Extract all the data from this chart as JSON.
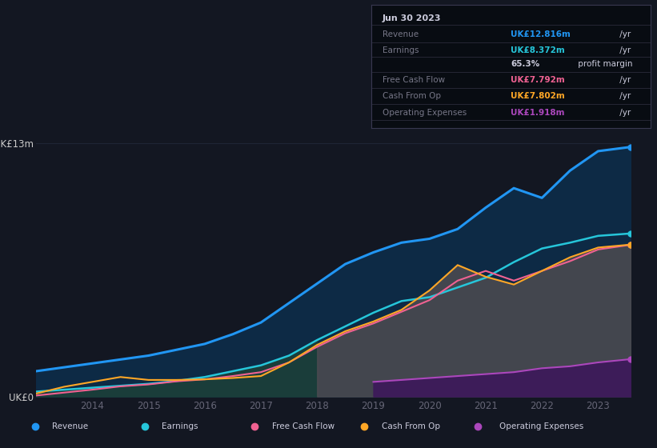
{
  "bg_color": "#131722",
  "plot_bg_color": "#131722",
  "years": [
    2013.0,
    2013.5,
    2014,
    2014.5,
    2015,
    2015.5,
    2016,
    2016.5,
    2017,
    2017.5,
    2018,
    2018.5,
    2019,
    2019.5,
    2020,
    2020.5,
    2021,
    2021.5,
    2022,
    2022.5,
    2023,
    2023.58
  ],
  "revenue": [
    1.3,
    1.5,
    1.7,
    1.9,
    2.1,
    2.4,
    2.7,
    3.2,
    3.8,
    4.8,
    5.8,
    6.8,
    7.4,
    7.9,
    8.1,
    8.6,
    9.7,
    10.7,
    10.2,
    11.6,
    12.6,
    12.816
  ],
  "earnings": [
    0.25,
    0.35,
    0.45,
    0.55,
    0.65,
    0.8,
    1.0,
    1.3,
    1.6,
    2.1,
    2.9,
    3.6,
    4.3,
    4.9,
    5.1,
    5.6,
    6.1,
    6.9,
    7.6,
    7.9,
    8.25,
    8.372
  ],
  "free_cf": [
    0.05,
    0.2,
    0.35,
    0.52,
    0.62,
    0.78,
    0.88,
    1.05,
    1.25,
    1.75,
    2.55,
    3.25,
    3.75,
    4.35,
    4.95,
    5.95,
    6.45,
    5.95,
    6.45,
    6.95,
    7.55,
    7.792
  ],
  "cash_op": [
    0.15,
    0.5,
    0.75,
    1.0,
    0.85,
    0.85,
    0.88,
    0.95,
    1.05,
    1.75,
    2.65,
    3.35,
    3.85,
    4.45,
    5.45,
    6.75,
    6.15,
    5.75,
    6.45,
    7.15,
    7.65,
    7.802
  ],
  "op_exp": [
    null,
    null,
    null,
    null,
    null,
    null,
    null,
    null,
    null,
    null,
    null,
    null,
    0.75,
    0.85,
    0.95,
    1.05,
    1.15,
    1.25,
    1.45,
    1.55,
    1.75,
    1.918
  ],
  "revenue_color": "#2196f3",
  "earnings_color": "#26c6da",
  "free_cf_color": "#f06292",
  "cash_op_color": "#ffa726",
  "op_exp_color": "#ab47bc",
  "revenue_fill_color": "#0d2a45",
  "earnings_fill_early_color": "#1a3d3a",
  "cash_op_fill_color": "#4a4a50",
  "op_exp_fill_color": "#3d1a5a",
  "ylim": [
    0,
    13
  ],
  "grid_color": "#1e2535",
  "xlabel_color": "#666677",
  "ylabel_color": "#cccccc",
  "info_box": {
    "date": "Jun 30 2023",
    "revenue_val": "UK£12.816m",
    "earnings_val": "UK£8.372m",
    "profit_margin": "65.3%",
    "free_cf_val": "UK£7.792m",
    "cash_op_val": "UK£7.802m",
    "op_exp_val": "UK£1.918m"
  },
  "legend_items": [
    {
      "label": "Revenue",
      "color": "#2196f3"
    },
    {
      "label": "Earnings",
      "color": "#26c6da"
    },
    {
      "label": "Free Cash Flow",
      "color": "#f06292"
    },
    {
      "label": "Cash From Op",
      "color": "#ffa726"
    },
    {
      "label": "Operating Expenses",
      "color": "#ab47bc"
    }
  ]
}
